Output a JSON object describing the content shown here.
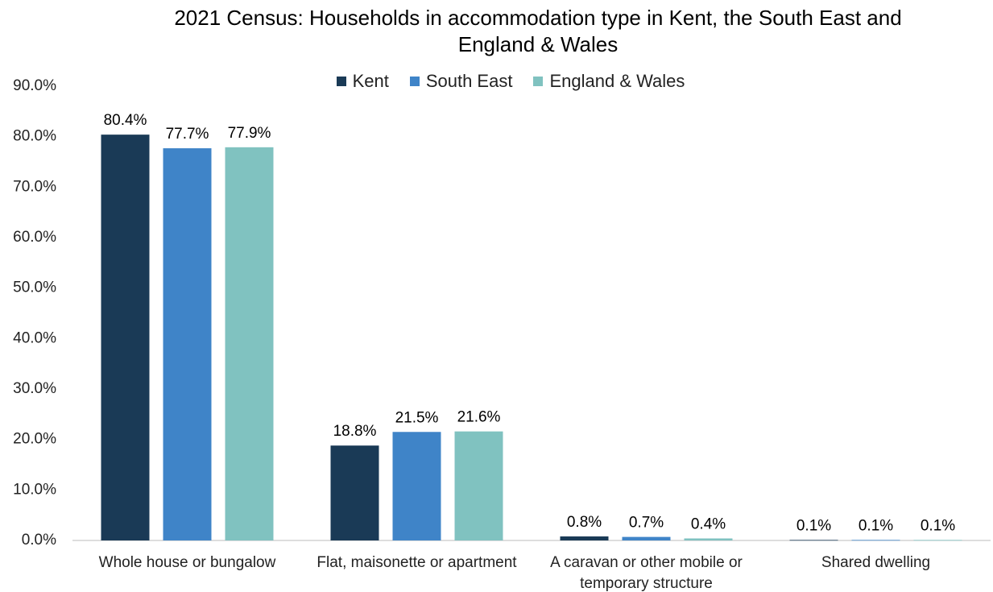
{
  "chart_data": {
    "type": "bar",
    "title": "2021 Census: Households in accommodation type in Kent, the South East and England & Wales",
    "categories": [
      "Whole house or bungalow",
      "Flat, maisonette or apartment",
      "A caravan or other mobile or temporary structure",
      "Shared dwelling"
    ],
    "series": [
      {
        "name": "Kent",
        "color": "#1a3a56",
        "values": [
          80.4,
          18.8,
          0.8,
          0.1
        ],
        "value_labels": [
          "80.4%",
          "18.8%",
          "0.8%",
          "0.1%"
        ]
      },
      {
        "name": "South East",
        "color": "#3f84c8",
        "values": [
          77.7,
          21.5,
          0.7,
          0.1
        ],
        "value_labels": [
          "77.7%",
          "21.5%",
          "0.7%",
          "0.1%"
        ]
      },
      {
        "name": "England & Wales",
        "color": "#80c2c0",
        "values": [
          77.9,
          21.6,
          0.4,
          0.1
        ],
        "value_labels": [
          "77.9%",
          "21.6%",
          "0.4%",
          "0.1%"
        ]
      }
    ],
    "ylim": [
      0,
      90
    ],
    "yticks": [
      {
        "value": 0,
        "label": "0.0%"
      },
      {
        "value": 10,
        "label": "10.0%"
      },
      {
        "value": 20,
        "label": "20.0%"
      },
      {
        "value": 30,
        "label": "30.0%"
      },
      {
        "value": 40,
        "label": "40.0%"
      },
      {
        "value": 50,
        "label": "50.0%"
      },
      {
        "value": 60,
        "label": "60.0%"
      },
      {
        "value": 70,
        "label": "70.0%"
      },
      {
        "value": 80,
        "label": "80.0%"
      },
      {
        "value": 90,
        "label": "90.0%"
      }
    ],
    "grid": false,
    "legend": "top"
  }
}
